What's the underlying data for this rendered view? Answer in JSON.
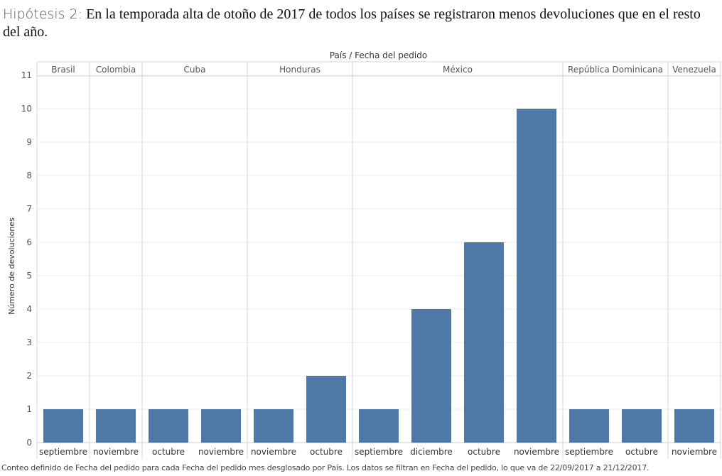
{
  "title": {
    "prefix": "Hipótesis 2:",
    "text": "En la temporada alta de otoño de 2017 de todos los países se registraron menos devoluciones que en el resto del año."
  },
  "footnote": "Conteo definido de Fecha del pedido para cada Fecha del pedido mes desglosado por País. Los datos se filtran en Fecha del pedido, lo que va de 22/09/2017 a 21/12/2017.",
  "colors": {
    "bar": "#4e79a7",
    "grid": "#eeeeee",
    "divider": "#d4d4d4",
    "text": "#555555"
  },
  "chart_data": {
    "type": "bar",
    "header": "País / Fecha del pedido",
    "ylabel": "Número de devoluciones",
    "ylim": [
      0,
      11
    ],
    "yticks": [
      0,
      1,
      2,
      3,
      4,
      5,
      6,
      7,
      8,
      9,
      10,
      11
    ],
    "grid": true,
    "groups": [
      {
        "name": "Brasil",
        "bars": [
          {
            "label": "septiembre",
            "value": 1
          }
        ]
      },
      {
        "name": "Colombia",
        "bars": [
          {
            "label": "noviembre",
            "value": 1
          }
        ]
      },
      {
        "name": "Cuba",
        "bars": [
          {
            "label": "octubre",
            "value": 1
          },
          {
            "label": "noviembre",
            "value": 1
          }
        ]
      },
      {
        "name": "Honduras",
        "bars": [
          {
            "label": "noviembre",
            "value": 1
          },
          {
            "label": "octubre",
            "value": 2
          }
        ]
      },
      {
        "name": "México",
        "bars": [
          {
            "label": "septiembre",
            "value": 1
          },
          {
            "label": "diciembre",
            "value": 4
          },
          {
            "label": "octubre",
            "value": 6
          },
          {
            "label": "noviembre",
            "value": 10
          }
        ]
      },
      {
        "name": "República Dominicana",
        "bars": [
          {
            "label": "septiembre",
            "value": 1
          },
          {
            "label": "octubre",
            "value": 1
          }
        ]
      },
      {
        "name": "Venezuela",
        "bars": [
          {
            "label": "noviembre",
            "value": 1
          }
        ]
      }
    ]
  }
}
